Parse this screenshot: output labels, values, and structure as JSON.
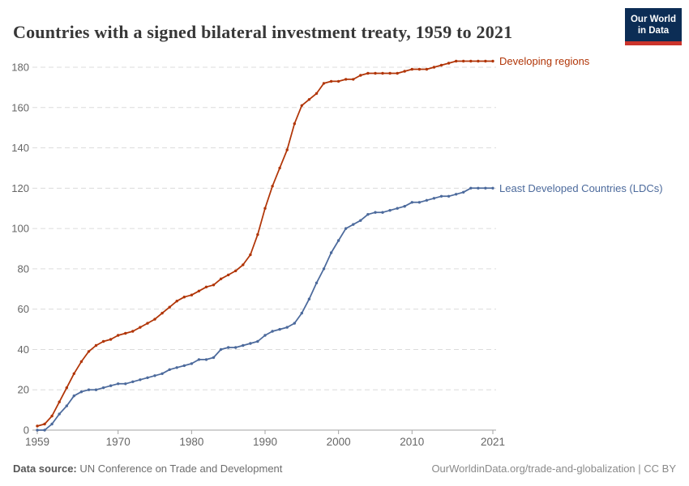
{
  "header": {
    "title": "Countries with a signed bilateral investment treaty, 1959 to 2021",
    "logo": {
      "line1": "Our World",
      "line2": "in Data"
    }
  },
  "chart_data": {
    "type": "line",
    "title": "Countries with a signed bilateral investment treaty, 1959 to 2021",
    "xlabel": "",
    "ylabel": "",
    "ylim": [
      0,
      180
    ],
    "yticks": [
      0,
      20,
      40,
      60,
      80,
      100,
      120,
      140,
      160,
      180
    ],
    "xticks": [
      1959,
      1970,
      1980,
      1990,
      2000,
      2010,
      2021
    ],
    "grid": "dashed-horizontal",
    "legend_position": "right-of-line-end",
    "x": [
      1959,
      1960,
      1961,
      1962,
      1963,
      1964,
      1965,
      1966,
      1967,
      1968,
      1969,
      1970,
      1971,
      1972,
      1973,
      1974,
      1975,
      1976,
      1977,
      1978,
      1979,
      1980,
      1981,
      1982,
      1983,
      1984,
      1985,
      1986,
      1987,
      1988,
      1989,
      1990,
      1991,
      1992,
      1993,
      1994,
      1995,
      1996,
      1997,
      1998,
      1999,
      2000,
      2001,
      2002,
      2003,
      2004,
      2005,
      2006,
      2007,
      2008,
      2009,
      2010,
      2011,
      2012,
      2013,
      2014,
      2015,
      2016,
      2017,
      2018,
      2019,
      2020,
      2021
    ],
    "series": [
      {
        "name": "Developing regions",
        "color": "#b13507",
        "values": [
          2,
          3,
          7,
          14,
          21,
          28,
          34,
          39,
          42,
          44,
          45,
          47,
          48,
          49,
          51,
          53,
          55,
          58,
          61,
          64,
          66,
          67,
          69,
          71,
          72,
          75,
          77,
          79,
          82,
          87,
          97,
          110,
          121,
          130,
          139,
          152,
          161,
          164,
          167,
          172,
          173,
          173,
          174,
          174,
          176,
          177,
          177,
          177,
          177,
          177,
          178,
          179,
          179,
          179,
          180,
          181,
          182,
          183,
          183,
          183,
          183,
          183,
          183
        ]
      },
      {
        "name": "Least Developed Countries (LDCs)",
        "color": "#4c6a9c",
        "values": [
          0,
          0,
          3,
          8,
          12,
          17,
          19,
          20,
          20,
          21,
          22,
          23,
          23,
          24,
          25,
          26,
          27,
          28,
          30,
          31,
          32,
          33,
          35,
          35,
          36,
          40,
          41,
          41,
          42,
          43,
          44,
          47,
          49,
          50,
          51,
          53,
          58,
          65,
          73,
          80,
          88,
          94,
          100,
          102,
          104,
          107,
          108,
          108,
          109,
          110,
          111,
          113,
          113,
          114,
          115,
          116,
          116,
          117,
          118,
          120,
          120,
          120,
          120
        ]
      }
    ],
    "axis_color": "#a3a3a3",
    "grid_color": "#dcdcdc",
    "tick_label_color": "#666666"
  },
  "footer": {
    "source_label": "Data source:",
    "source_value": " UN Conference on Trade and Development",
    "credit": "OurWorldinData.org/trade-and-globalization | CC BY"
  }
}
